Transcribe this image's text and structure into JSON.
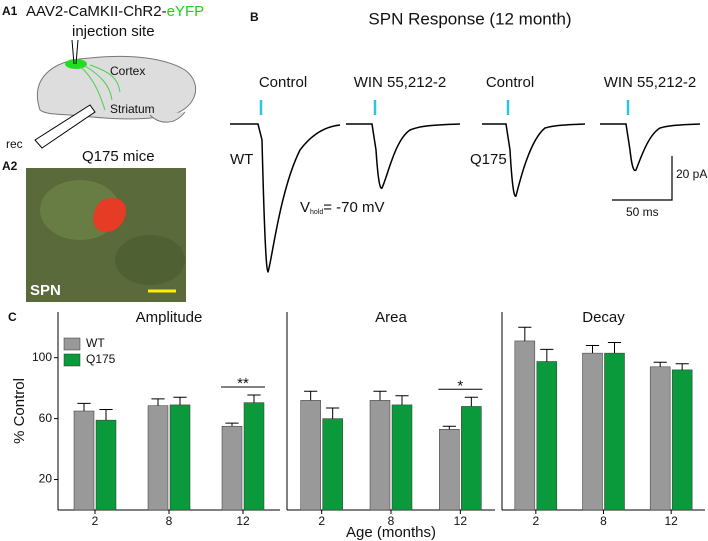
{
  "panels": {
    "a1": {
      "label": "A1",
      "virus": "AAV2-CaMKII-ChR2-",
      "virus_highlight": "eYFP",
      "injection": "injection site",
      "cortex": "Cortex",
      "striatum": "Striatum",
      "rec": "rec"
    },
    "a2": {
      "label": "A2",
      "title": "Q175  mice",
      "cell": "SPN"
    },
    "b": {
      "label": "B",
      "title": "SPN Response (12 month)",
      "conditions": [
        "Control",
        "WIN 55,212-2",
        "Control",
        "WIN 55,212-2"
      ],
      "genotypes": [
        "WT",
        "Q175"
      ],
      "vhold": [
        "V",
        "hold",
        "= -70 mV"
      ],
      "scale_y": "20 pA",
      "scale_x": "50 ms"
    },
    "c": {
      "label": "C"
    }
  },
  "chart_data": [
    {
      "type": "bar",
      "title": "Amplitude",
      "categories": [
        "2",
        "8",
        "12"
      ],
      "ylabel": "% Control",
      "ylim": [
        0,
        130
      ],
      "yticks": [
        20,
        60,
        100
      ],
      "legend": "upper left",
      "series": [
        {
          "name": "WT",
          "color": "#999999",
          "values": [
            65,
            68.5,
            55
          ],
          "errors": [
            5,
            4.5,
            2
          ]
        },
        {
          "name": "Q175",
          "color": "#0a9a3c",
          "values": [
            59,
            69,
            70.5
          ],
          "errors": [
            7,
            5,
            5
          ]
        }
      ],
      "annotations": [
        {
          "text": "**",
          "x": "12"
        }
      ]
    },
    {
      "type": "bar",
      "title": "Area",
      "categories": [
        "2",
        "8",
        "12"
      ],
      "xlabel": "Age (months)",
      "ylim": [
        0,
        130
      ],
      "series": [
        {
          "name": "WT",
          "color": "#999999",
          "values": [
            72,
            72,
            53
          ],
          "errors": [
            6,
            6,
            2
          ]
        },
        {
          "name": "Q175",
          "color": "#0a9a3c",
          "values": [
            60,
            69,
            68
          ],
          "errors": [
            7,
            6,
            6
          ]
        }
      ],
      "annotations": [
        {
          "text": "*",
          "x": "12"
        }
      ]
    },
    {
      "type": "bar",
      "title": "Decay",
      "categories": [
        "2",
        "8",
        "12"
      ],
      "ylim": [
        0,
        130
      ],
      "series": [
        {
          "name": "WT",
          "color": "#999999",
          "values": [
            111,
            103,
            94
          ],
          "errors": [
            9,
            5,
            3
          ]
        },
        {
          "name": "Q175",
          "color": "#0a9a3c",
          "values": [
            97.5,
            103,
            92
          ],
          "errors": [
            8,
            7,
            4
          ]
        }
      ]
    }
  ]
}
